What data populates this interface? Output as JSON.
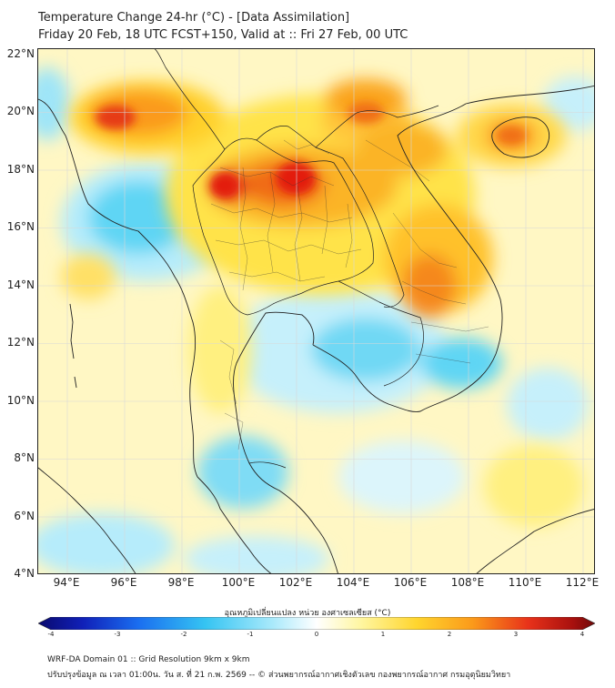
{
  "header": {
    "title": "Temperature Change 24-hr (°C) - [Data Assimilation]",
    "subtitle": "Friday 20 Feb, 18 UTC FCST+150, Valid at :: Fri 27 Feb, 00 UTC"
  },
  "map": {
    "lat_labels": [
      "22°N",
      "20°N",
      "18°N",
      "16°N",
      "14°N",
      "12°N",
      "10°N",
      "8°N",
      "6°N",
      "4°N"
    ],
    "lon_labels": [
      "94°E",
      "96°E",
      "98°E",
      "100°E",
      "102°E",
      "104°E",
      "106°E",
      "108°E",
      "110°E",
      "112°E"
    ]
  },
  "colorbar": {
    "label": "อุณหภูมิเปลี่ยนแปลง หน่วย องศาเซลเซียส (°C)",
    "min": -4,
    "max": 4,
    "ticks": [
      "-4",
      "-3",
      "-2",
      "-1",
      "0",
      "1",
      "2",
      "3",
      "4"
    ]
  },
  "footer": {
    "line1": "WRF-DA Domain 01 :: Grid Resolution 9km x 9km",
    "line2": "ปรับปรุงข้อมูล ณ เวลา 01:00น. วัน ส. ที่ 21 ก.พ. 2569 -- © ส่วนพยากรณ์อากาศเชิงตัวเลข กองพยากรณ์อากาศ กรมอุตุนิยมวิทยา"
  },
  "colors": {
    "warm_dark": "#e31a10",
    "warm": "#fb9a1a",
    "warm_light": "#ffe13c",
    "pale": "#fff7b5",
    "cool_light": "#b6ecfb",
    "cool": "#4fd0f3",
    "border": "#222222"
  }
}
